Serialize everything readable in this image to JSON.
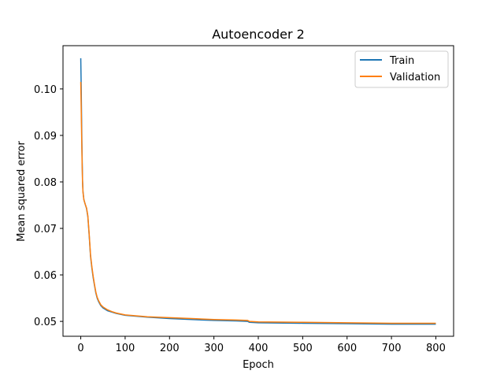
{
  "chart_data": {
    "type": "line",
    "title": "Autoencoder 2",
    "xlabel": "Epoch",
    "ylabel": "Mean squared error",
    "xlim": [
      -40,
      840
    ],
    "ylim": [
      0.0468,
      0.1093
    ],
    "xticks": [
      0,
      100,
      200,
      300,
      400,
      500,
      600,
      700,
      800
    ],
    "yticks": [
      0.05,
      0.06,
      0.07,
      0.08,
      0.09,
      0.1
    ],
    "ytick_labels": [
      "0.05",
      "0.06",
      "0.07",
      "0.08",
      "0.09",
      "0.10"
    ],
    "grid": false,
    "legend_position": "top-right",
    "series": [
      {
        "name": "Train",
        "color": "#1f77b4",
        "points": [
          [
            0,
            0.1066
          ],
          [
            1,
            0.1005
          ],
          [
            2,
            0.0925
          ],
          [
            3,
            0.0855
          ],
          [
            4,
            0.0805
          ],
          [
            5,
            0.078
          ],
          [
            7,
            0.0762
          ],
          [
            10,
            0.0752
          ],
          [
            13,
            0.0743
          ],
          [
            16,
            0.0725
          ],
          [
            19,
            0.0685
          ],
          [
            22,
            0.064
          ],
          [
            25,
            0.0615
          ],
          [
            28,
            0.0594
          ],
          [
            31,
            0.0577
          ],
          [
            34,
            0.0561
          ],
          [
            37,
            0.055
          ],
          [
            40,
            0.0543
          ],
          [
            45,
            0.0534
          ],
          [
            50,
            0.0529
          ],
          [
            60,
            0.0523
          ],
          [
            70,
            0.052
          ],
          [
            80,
            0.0517
          ],
          [
            100,
            0.0513
          ],
          [
            150,
            0.0509
          ],
          [
            200,
            0.0506
          ],
          [
            250,
            0.0504
          ],
          [
            300,
            0.0502
          ],
          [
            350,
            0.0501
          ],
          [
            376,
            0.05
          ],
          [
            380,
            0.0498
          ],
          [
            400,
            0.0497
          ],
          [
            500,
            0.0496
          ],
          [
            600,
            0.0495
          ],
          [
            700,
            0.0494
          ],
          [
            800,
            0.0494
          ]
        ]
      },
      {
        "name": "Validation",
        "color": "#ff7f0e",
        "points": [
          [
            0,
            0.1015
          ],
          [
            1,
            0.096
          ],
          [
            2,
            0.09
          ],
          [
            3,
            0.0845
          ],
          [
            4,
            0.08
          ],
          [
            5,
            0.0778
          ],
          [
            7,
            0.0762
          ],
          [
            10,
            0.0752
          ],
          [
            13,
            0.0744
          ],
          [
            16,
            0.0727
          ],
          [
            19,
            0.0688
          ],
          [
            22,
            0.0643
          ],
          [
            25,
            0.0618
          ],
          [
            28,
            0.0597
          ],
          [
            31,
            0.0579
          ],
          [
            34,
            0.0563
          ],
          [
            37,
            0.0552
          ],
          [
            40,
            0.0545
          ],
          [
            45,
            0.0536
          ],
          [
            50,
            0.0531
          ],
          [
            60,
            0.0525
          ],
          [
            70,
            0.0521
          ],
          [
            80,
            0.0518
          ],
          [
            100,
            0.0514
          ],
          [
            150,
            0.051
          ],
          [
            200,
            0.0508
          ],
          [
            250,
            0.0506
          ],
          [
            300,
            0.0504
          ],
          [
            350,
            0.0503
          ],
          [
            376,
            0.0502
          ],
          [
            380,
            0.05
          ],
          [
            400,
            0.0499
          ],
          [
            500,
            0.0498
          ],
          [
            600,
            0.0497
          ],
          [
            700,
            0.0496
          ],
          [
            800,
            0.0496
          ]
        ]
      }
    ]
  }
}
